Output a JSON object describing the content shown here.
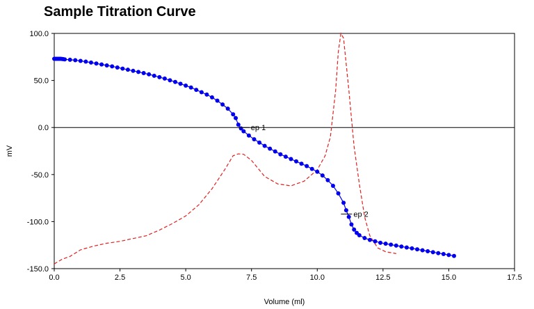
{
  "chart_data": {
    "type": "line",
    "title": "Sample Titration Curve",
    "xlabel": "Volume (ml)",
    "ylabel": "mV",
    "xlim": [
      0,
      17.5
    ],
    "ylim": [
      -150,
      100
    ],
    "x_ticks": [
      "0.0",
      "2.5",
      "5.0",
      "7.5",
      "10.0",
      "12.5",
      "15.0",
      "17.5"
    ],
    "x_tick_values": [
      0,
      2.5,
      5,
      7.5,
      10,
      12.5,
      15,
      17.5
    ],
    "y_ticks": [
      "100.0",
      "50.0",
      "0.0",
      "-50.0",
      "-100.0",
      "-150.0"
    ],
    "y_tick_values": [
      100,
      50,
      0,
      -50,
      -100,
      -150
    ],
    "zero_line": true,
    "grid": false,
    "legend": "none",
    "series": [
      {
        "style": "solid-markers",
        "color": "#0000ee",
        "points": [
          [
            0.0,
            73
          ],
          [
            0.05,
            73
          ],
          [
            0.1,
            73
          ],
          [
            0.15,
            73
          ],
          [
            0.2,
            73
          ],
          [
            0.25,
            73
          ],
          [
            0.3,
            72.8
          ],
          [
            0.35,
            72.6
          ],
          [
            0.4,
            72.4
          ],
          [
            0.6,
            72
          ],
          [
            0.8,
            71.5
          ],
          [
            1.0,
            70.8
          ],
          [
            1.2,
            70
          ],
          [
            1.4,
            69
          ],
          [
            1.6,
            68
          ],
          [
            1.8,
            67
          ],
          [
            2.0,
            66
          ],
          [
            2.2,
            65
          ],
          [
            2.4,
            63.8
          ],
          [
            2.6,
            62.6
          ],
          [
            2.8,
            61.4
          ],
          [
            3.0,
            60.2
          ],
          [
            3.2,
            59
          ],
          [
            3.4,
            57.8
          ],
          [
            3.6,
            56.5
          ],
          [
            3.8,
            55
          ],
          [
            4.0,
            53.5
          ],
          [
            4.2,
            52
          ],
          [
            4.4,
            50.2
          ],
          [
            4.6,
            48.4
          ],
          [
            4.8,
            46.5
          ],
          [
            5.0,
            44.5
          ],
          [
            5.2,
            42.5
          ],
          [
            5.4,
            40
          ],
          [
            5.6,
            37.5
          ],
          [
            5.8,
            35
          ],
          [
            6.0,
            32
          ],
          [
            6.2,
            28.5
          ],
          [
            6.4,
            24.5
          ],
          [
            6.6,
            20
          ],
          [
            6.8,
            14
          ],
          [
            6.9,
            10
          ],
          [
            7.0,
            3
          ],
          [
            7.1,
            -1
          ],
          [
            7.2,
            -4
          ],
          [
            7.4,
            -8.5
          ],
          [
            7.6,
            -12.5
          ],
          [
            7.8,
            -16
          ],
          [
            8.0,
            -19.5
          ],
          [
            8.2,
            -22.5
          ],
          [
            8.4,
            -25.5
          ],
          [
            8.6,
            -28.5
          ],
          [
            8.8,
            -31
          ],
          [
            9.0,
            -33.5
          ],
          [
            9.2,
            -36
          ],
          [
            9.4,
            -38.5
          ],
          [
            9.6,
            -41
          ],
          [
            9.8,
            -44
          ],
          [
            10.0,
            -47
          ],
          [
            10.2,
            -51
          ],
          [
            10.4,
            -56
          ],
          [
            10.6,
            -62
          ],
          [
            10.8,
            -70
          ],
          [
            11.0,
            -80
          ],
          [
            11.1,
            -88
          ],
          [
            11.2,
            -95
          ],
          [
            11.3,
            -103
          ],
          [
            11.4,
            -108.5
          ],
          [
            11.5,
            -112
          ],
          [
            11.6,
            -114.5
          ],
          [
            11.8,
            -117.5
          ],
          [
            12.0,
            -119.5
          ],
          [
            12.2,
            -121
          ],
          [
            12.4,
            -122.5
          ],
          [
            12.6,
            -123.5
          ],
          [
            12.8,
            -124.5
          ],
          [
            13.0,
            -125.5
          ],
          [
            13.2,
            -126.5
          ],
          [
            13.4,
            -127.5
          ],
          [
            13.6,
            -128.5
          ],
          [
            13.8,
            -129.5
          ],
          [
            14.0,
            -130.5
          ],
          [
            14.2,
            -131.5
          ],
          [
            14.4,
            -132.5
          ],
          [
            14.6,
            -133.5
          ],
          [
            14.8,
            -134.5
          ],
          [
            15.0,
            -135.5
          ],
          [
            15.2,
            -136.5
          ]
        ]
      },
      {
        "style": "dashed",
        "color": "#e02020",
        "points": [
          [
            0.0,
            -145
          ],
          [
            0.3,
            -140
          ],
          [
            0.6,
            -137
          ],
          [
            1.0,
            -130
          ],
          [
            1.5,
            -126
          ],
          [
            2.0,
            -123
          ],
          [
            2.5,
            -121
          ],
          [
            3.0,
            -118
          ],
          [
            3.5,
            -115
          ],
          [
            4.0,
            -109
          ],
          [
            4.5,
            -102
          ],
          [
            5.0,
            -94
          ],
          [
            5.5,
            -82
          ],
          [
            6.0,
            -65
          ],
          [
            6.5,
            -44
          ],
          [
            6.8,
            -30
          ],
          [
            7.0,
            -28
          ],
          [
            7.2,
            -28.5
          ],
          [
            7.5,
            -35
          ],
          [
            8.0,
            -52
          ],
          [
            8.5,
            -60
          ],
          [
            9.0,
            -62
          ],
          [
            9.5,
            -57
          ],
          [
            10.0,
            -45
          ],
          [
            10.3,
            -30
          ],
          [
            10.5,
            -10
          ],
          [
            10.7,
            40
          ],
          [
            10.8,
            80
          ],
          [
            10.9,
            100
          ],
          [
            11.0,
            95
          ],
          [
            11.2,
            40
          ],
          [
            11.4,
            -20
          ],
          [
            11.6,
            -60
          ],
          [
            11.8,
            -95
          ],
          [
            12.0,
            -115
          ],
          [
            12.3,
            -128
          ],
          [
            12.6,
            -132
          ],
          [
            13.0,
            -134
          ]
        ]
      }
    ],
    "annotations": [
      {
        "label": "ep 1",
        "x": 7.0,
        "y": 0
      },
      {
        "label": "ep 2",
        "x": 10.9,
        "y": -92
      }
    ]
  }
}
